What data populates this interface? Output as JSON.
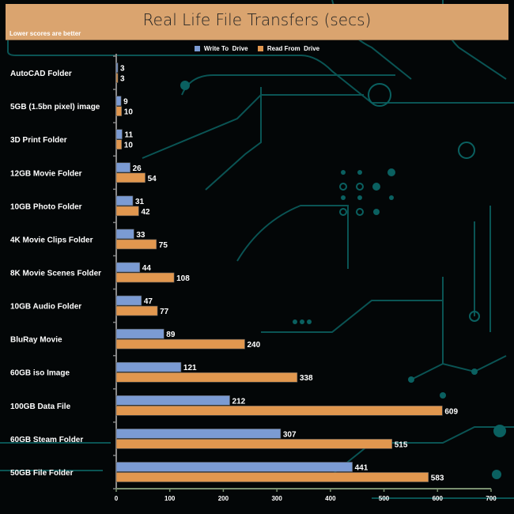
{
  "header": {
    "title": "Real Life File Transfers (secs)",
    "subtitle": "Lower scores are better"
  },
  "colors": {
    "write": "#7b9bd3",
    "read": "#e1974f",
    "header": "#daa46f",
    "trace": "#0a5a5a"
  },
  "chart_data": {
    "type": "bar",
    "orientation": "horizontal",
    "title": "Real Life File Transfers (secs)",
    "subtitle": "Lower scores are better",
    "xlim": [
      0,
      700
    ],
    "xticks": [
      0,
      100,
      200,
      300,
      400,
      500,
      600,
      700
    ],
    "legend": "top-center",
    "categories": [
      "AutoCAD Folder",
      "5GB (1.5bn pixel) image",
      "3D Print Folder",
      "12GB Movie Folder",
      "10GB Photo Folder",
      "4K Movie Clips Folder",
      "8K Movie Scenes Folder",
      "10GB Audio Folder",
      "BluRay Movie",
      "60GB iso Image",
      "100GB Data File",
      "60GB Steam Folder",
      "50GB File Folder"
    ],
    "series": [
      {
        "name": "Write To  Drive",
        "values": [
          3,
          9,
          11,
          26,
          31,
          33,
          44,
          47,
          89,
          121,
          212,
          307,
          441
        ]
      },
      {
        "name": "Read From  Drive",
        "values": [
          3,
          10,
          10,
          54,
          42,
          75,
          108,
          77,
          240,
          338,
          609,
          515,
          583
        ]
      }
    ]
  }
}
